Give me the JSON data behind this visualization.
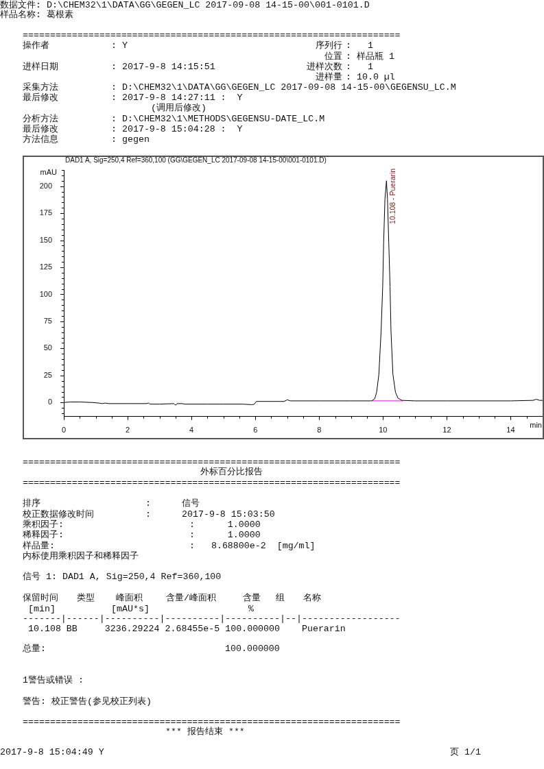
{
  "chart_data": {
    "type": "line",
    "title": "DAD1 A, Sig=250,4 Ref=360,100 (GG\\GEGEN_LC 2017-09-08 14-15-00\\001-0101.D)",
    "xlabel": "min",
    "ylabel": "mAU",
    "xlim": [
      0,
      15
    ],
    "ylim": [
      -13,
      215
    ],
    "xticks": [
      0,
      {
        "value": 0.5,
        "label": null
      },
      {
        "value": 1,
        "label": null
      },
      {
        "value": 1.5,
        "label": null
      },
      2,
      {
        "value": 2.5,
        "label": null
      },
      {
        "value": 3,
        "label": null
      },
      {
        "value": 3.5,
        "label": null
      },
      4,
      {
        "value": 4.5,
        "label": null
      },
      {
        "value": 5,
        "label": null
      },
      {
        "value": 5.5,
        "label": null
      },
      6,
      {
        "value": 6.5,
        "label": null
      },
      {
        "value": 7,
        "label": null
      },
      {
        "value": 7.5,
        "label": null
      },
      8,
      {
        "value": 8.5,
        "label": null
      },
      {
        "value": 9,
        "label": null
      },
      {
        "value": 9.5,
        "label": null
      },
      10,
      {
        "value": 10.5,
        "label": null
      },
      {
        "value": 11,
        "label": null
      },
      {
        "value": 11.5,
        "label": null
      },
      12,
      {
        "value": 12.5,
        "label": null
      },
      {
        "value": 13,
        "label": null
      },
      {
        "value": 13.5,
        "label": null
      },
      14,
      {
        "value": 14.5,
        "label": null
      }
    ],
    "yticks": [
      {
        "value": -10,
        "label": null
      },
      {
        "value": -5,
        "label": null
      },
      0,
      {
        "value": 5,
        "label": null
      },
      {
        "value": 10,
        "label": null
      },
      {
        "value": 15,
        "label": null
      },
      {
        "value": 20,
        "label": null
      },
      25,
      {
        "value": 30,
        "label": null
      },
      {
        "value": 35,
        "label": null
      },
      {
        "value": 40,
        "label": null
      },
      {
        "value": 45,
        "label": null
      },
      50,
      {
        "value": 55,
        "label": null
      },
      {
        "value": 60,
        "label": null
      },
      {
        "value": 65,
        "label": null
      },
      {
        "value": 70,
        "label": null
      },
      75,
      {
        "value": 80,
        "label": null
      },
      {
        "value": 85,
        "label": null
      },
      {
        "value": 90,
        "label": null
      },
      {
        "value": 95,
        "label": null
      },
      100,
      {
        "value": 105,
        "label": null
      },
      {
        "value": 110,
        "label": null
      },
      {
        "value": 115,
        "label": null
      },
      {
        "value": 120,
        "label": null
      },
      125,
      {
        "value": 130,
        "label": null
      },
      {
        "value": 135,
        "label": null
      },
      {
        "value": 140,
        "label": null
      },
      {
        "value": 145,
        "label": null
      },
      150,
      {
        "value": 155,
        "label": null
      },
      {
        "value": 160,
        "label": null
      },
      {
        "value": 165,
        "label": null
      },
      {
        "value": 170,
        "label": null
      },
      175,
      {
        "value": 180,
        "label": null
      },
      {
        "value": 185,
        "label": null
      },
      {
        "value": 190,
        "label": null
      },
      {
        "value": 195,
        "label": null
      },
      200,
      {
        "value": 205,
        "label": null
      },
      {
        "value": 210,
        "label": null
      },
      {
        "value": 215,
        "label": null
      }
    ],
    "series": [
      {
        "color": "#000000",
        "x": [
          0,
          0.2,
          0.5,
          0.9,
          1.1,
          1.2,
          1.3,
          1.4,
          2.0,
          2.6,
          2.65,
          2.7,
          3.0,
          3.45,
          3.5,
          3.55,
          3.7,
          3.8,
          4.5,
          5.0,
          5.6,
          5.9,
          5.97,
          6.03,
          6.5,
          6.9,
          7.0,
          7.1,
          8.0,
          9.0,
          9.65,
          9.74,
          9.8,
          9.87,
          9.94,
          9.99,
          10.02,
          10.06,
          10.108,
          10.14,
          10.18,
          10.22,
          10.25,
          10.31,
          10.39,
          10.47,
          10.59,
          11.0,
          12.0,
          13.0,
          14.0,
          14.7,
          14.8,
          14.9,
          15.0
        ],
        "values": [
          0,
          0.5,
          0.5,
          0,
          -0.5,
          -1,
          -0.5,
          -1,
          -1,
          -1,
          -0.5,
          -1.5,
          -1.5,
          -1,
          -2.5,
          -1,
          -1,
          -1.5,
          -1.5,
          -1.5,
          -1.5,
          -2,
          -1.5,
          1,
          1,
          1,
          2.5,
          1.5,
          1.5,
          1.5,
          1.5,
          3.5,
          9.5,
          26,
          66,
          107,
          148,
          188,
          205,
          188,
          148,
          107,
          66,
          26,
          9.5,
          4,
          2,
          1.5,
          1.5,
          1.5,
          1.5,
          2,
          3,
          2,
          2
        ]
      },
      {
        "color": "#e000e0",
        "x": [
          9.67,
          10.62
        ],
        "values": [
          1.5,
          1.5
        ]
      }
    ],
    "annotations": [
      "数据文件: D:\\CHEM32\\1\\DATA\\GG\\GEGEN_LC 2017-09-08 14-15-00\\001-0101.D",
      "样品名称: 葛根素",
      "=====================================================================",
      "操作者",
      ": Y",
      "序列行",
      ":   1",
      "位置",
      ": 样品瓶 1",
      "进样日期",
      ": 2017-9-8 14:15:51",
      "进样次数",
      ":   1",
      "进样量",
      ": 10.0 µl",
      "采集方法",
      ": D:\\CHEM32\\1\\DATA\\GG\\GEGEN_LC 2017-09-08 14-15-00\\GEGENSU_LC.M",
      "最后修改",
      ": 2017-9-8 14:27:11 :  Y",
      "(调用后修改)",
      "分析方法",
      ": D:\\CHEM32\\1\\METHODS\\GEGENSU-DATE_LC.M",
      "最后修改",
      ": 2017-9-8 15:04:28 :  Y",
      "方法信息",
      ": gegen",
      "=====================================================================",
      "外标百分比报告",
      "=====================================================================",
      "排序",
      ":",
      "信号",
      "校正数据修改时间",
      ":",
      "2017-9-8 15:03:50",
      "乘积因子:",
      ":      1.0000",
      "稀释因子:",
      ":      1.0000",
      "样品量:",
      ":   8.68800e-2  [mg/ml]",
      "内标使用乘积因子和稀释因子",
      "信号 1: DAD1 A, Sig=250,4 Ref=360,100",
      "保留时间",
      "类型",
      "峰面积",
      "含量/峰面积",
      "含量",
      "组",
      "名称",
      "[min]",
      "[mAU*s]",
      "%",
      "-------|------|----------|----------|----------|--|------------------",
      " 10.108 BB     3236.29224 2.68455e-5 100.000000    Puerarin",
      "总量:",
      "100.000000",
      "1警告或错误 :",
      "警告: 校正警告(参见校正列表)",
      "=====================================================================",
      "*** 报告结束 ***",
      "2017-9-8 15:04:49 Y",
      "页 1/1",
      {
        "text": "10.108 - Puerarin",
        "x": 10.108,
        "y": 205
      }
    ]
  }
}
